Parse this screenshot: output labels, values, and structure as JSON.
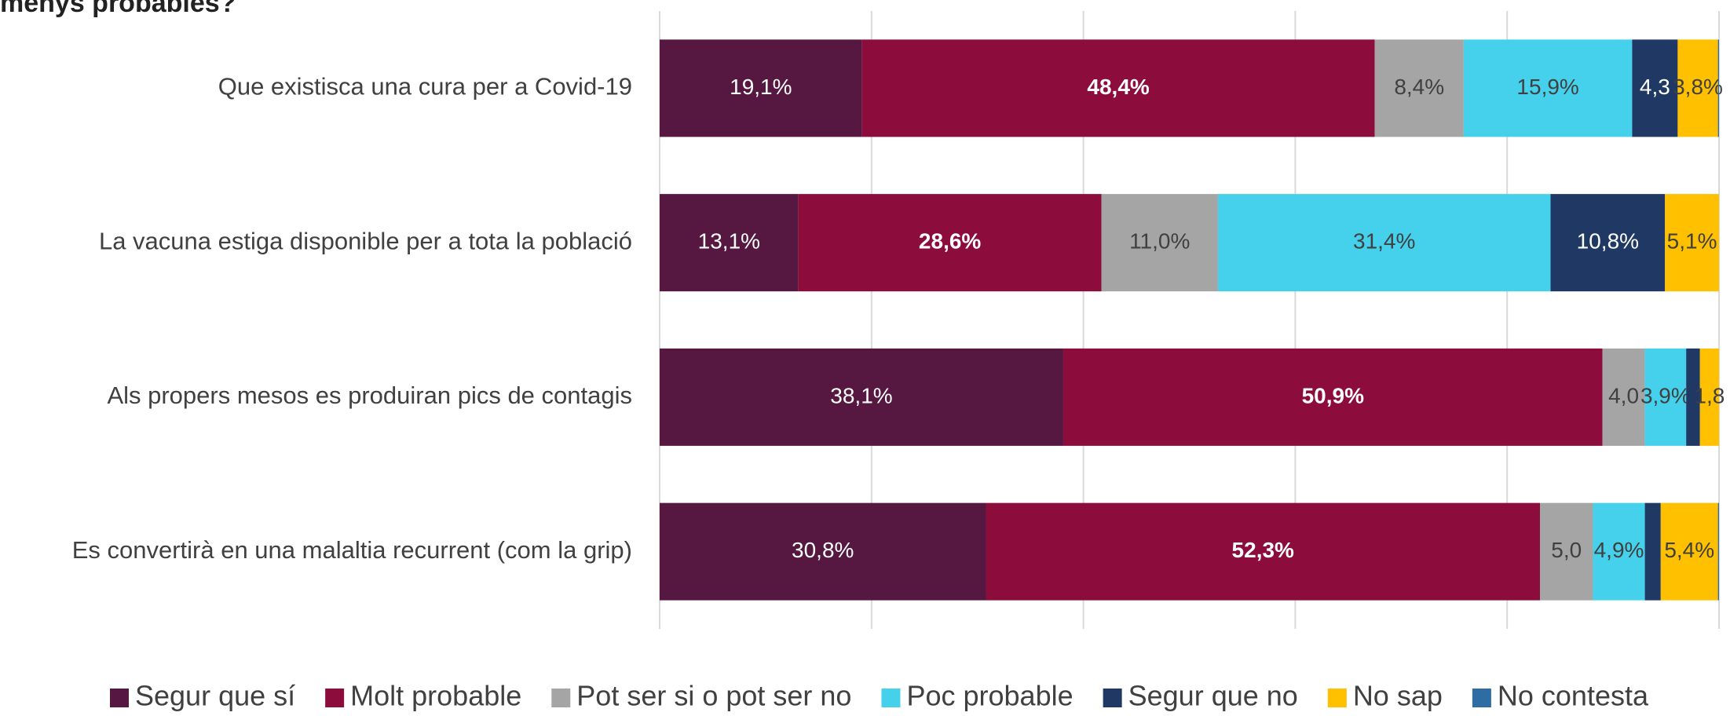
{
  "chart_data": {
    "type": "stacked_barh",
    "title": "menys probables?",
    "categories": [
      "Que existisca una cura per a Covid-19",
      "La vacuna estiga disponible per a tota la població",
      "Als propers mesos es produiran pics de contagis",
      "Es convertirà en una malaltia recurrent (com la grip)"
    ],
    "series": [
      {
        "name": "Segur que sí",
        "color": "#561741",
        "text_color": "#ffffff",
        "values": [
          19.1,
          13.1,
          38.1,
          30.8
        ],
        "value_labels": [
          "19,1%",
          "13,1%",
          "38,1%",
          "30,8%"
        ]
      },
      {
        "name": "Molt probable",
        "color": "#8c0c3c",
        "text_color": "#ffffff",
        "bold": true,
        "values": [
          48.4,
          28.6,
          50.9,
          52.3
        ],
        "value_labels": [
          "48,4%",
          "28,6%",
          "50,9%",
          "52,3%"
        ]
      },
      {
        "name": "Pot ser si o pot ser no",
        "color": "#a5a5a5",
        "text_color": "#404040",
        "values": [
          8.4,
          11.0,
          4.0,
          5.0
        ],
        "value_labels": [
          "8,4%",
          "11,0%",
          "4,0",
          "5,0"
        ]
      },
      {
        "name": "Poc probable",
        "color": "#45d1ec",
        "text_color": "#404040",
        "values": [
          15.9,
          31.4,
          3.9,
          4.9
        ],
        "value_labels": [
          "15,9%",
          "31,4%",
          "3,9%",
          "4,9%"
        ]
      },
      {
        "name": "Segur que no",
        "color": "#1f3864",
        "text_color": "#ffffff",
        "values": [
          4.3,
          10.8,
          1.3,
          1.5
        ],
        "value_labels": [
          "4,3",
          "10,8%",
          null,
          null
        ]
      },
      {
        "name": "No sap",
        "color": "#ffc000",
        "text_color": "#404040",
        "values": [
          3.8,
          5.1,
          1.8,
          5.4
        ],
        "value_labels": [
          "3,8%",
          "5,1%",
          "1,8",
          "5,4%"
        ]
      },
      {
        "name": "No contesta",
        "color": "#2e6ca4",
        "text_color": "#ffffff",
        "values": [
          0.1,
          0.0,
          0.0,
          0.1
        ],
        "value_labels": [
          null,
          null,
          null,
          null
        ]
      }
    ],
    "xlim": [
      0,
      100
    ],
    "xticks": [
      0,
      20,
      40,
      60,
      80,
      100
    ],
    "grid": true,
    "legend": "bottom"
  }
}
